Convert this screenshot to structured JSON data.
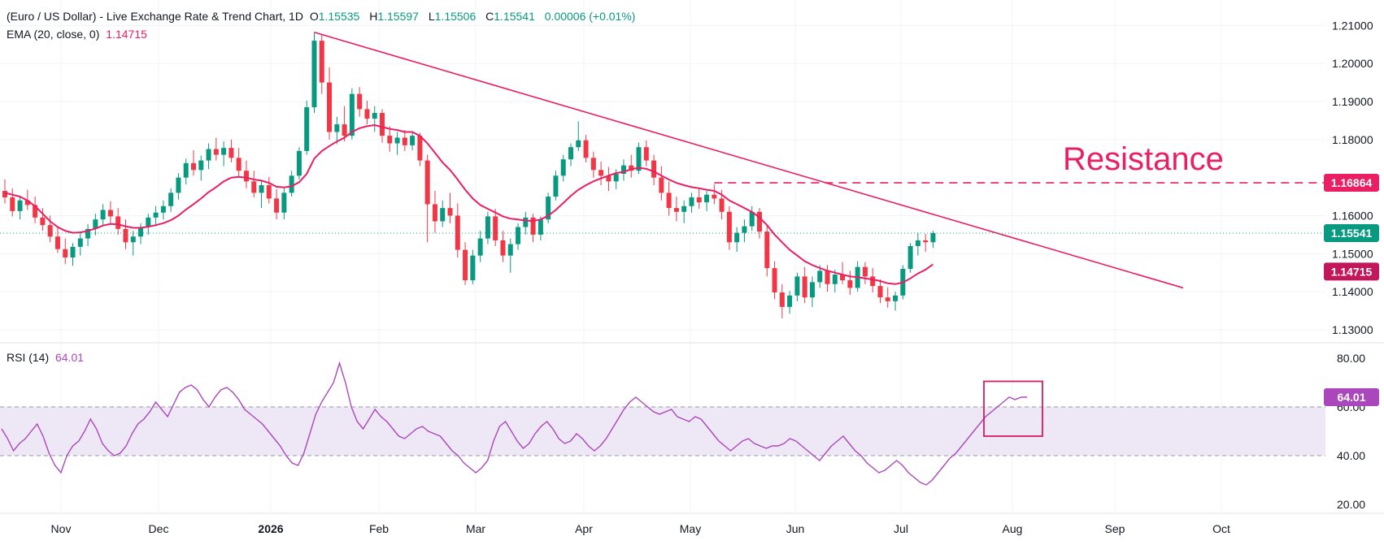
{
  "header": {
    "symbol": "(Euro / US Dollar) - Live Exchange Rate & Trend Chart, 1D",
    "o_label": "O",
    "o_value": "1.15535",
    "h_label": "H",
    "h_value": "1.15597",
    "l_label": "L",
    "l_value": "1.15506",
    "c_label": "C",
    "c_value": "1.15541",
    "change": "0.00006 (+0.01%)",
    "ema_label": "EMA (20, close, 0)",
    "ema_value": "1.14715",
    "rsi_label": "RSI (14)",
    "rsi_value": "64.01"
  },
  "colors": {
    "up": "#089981",
    "down": "#f23645",
    "ema": "#e91e63",
    "trendline": "#e91e63",
    "rsi": "#ab47bc",
    "rsi_band": "#ede7f6",
    "price_line": "#089981",
    "grid": "#f0f3fa"
  },
  "chart_data": [
    {
      "type": "candlestick",
      "title": "(Euro / US Dollar) - Live Exchange Rate & Trend Chart, 1D",
      "x_ticks": [
        "Nov",
        "Dec",
        "2026",
        "Feb",
        "Mar",
        "Apr",
        "May",
        "Jun",
        "Jul",
        "Aug",
        "Sep",
        "Oct"
      ],
      "y_ticks": [
        "1.21000",
        "1.20000",
        "1.19000",
        "1.18000",
        "1.16000",
        "1.15000",
        "1.14000",
        "1.13000"
      ],
      "ylim": [
        1.127,
        1.212
      ],
      "ohlc": [
        [
          1.1665,
          1.1695,
          1.1632,
          1.1648
        ],
        [
          1.1648,
          1.1672,
          1.1598,
          1.1612
        ],
        [
          1.1612,
          1.1652,
          1.159,
          1.164
        ],
        [
          1.164,
          1.1668,
          1.1615,
          1.1628
        ],
        [
          1.1628,
          1.165,
          1.158,
          1.1595
        ],
        [
          1.1595,
          1.162,
          1.156,
          1.1575
        ],
        [
          1.1575,
          1.16,
          1.153,
          1.1545
        ],
        [
          1.1545,
          1.1572,
          1.1502,
          1.1512
        ],
        [
          1.1512,
          1.154,
          1.1472,
          1.149
        ],
        [
          1.149,
          1.1528,
          1.1468,
          1.1518
        ],
        [
          1.1518,
          1.1555,
          1.1495,
          1.154
        ],
        [
          1.154,
          1.1578,
          1.152,
          1.1565
        ],
        [
          1.1565,
          1.1605,
          1.1548,
          1.159
        ],
        [
          1.159,
          1.163,
          1.1572,
          1.1615
        ],
        [
          1.1615,
          1.1638,
          1.158,
          1.1598
        ],
        [
          1.1598,
          1.162,
          1.155,
          1.1565
        ],
        [
          1.1565,
          1.159,
          1.1512,
          1.153
        ],
        [
          1.153,
          1.156,
          1.1495,
          1.1545
        ],
        [
          1.1545,
          1.158,
          1.1525,
          1.157
        ],
        [
          1.157,
          1.1605,
          1.155,
          1.1595
        ],
        [
          1.1595,
          1.1625,
          1.1572,
          1.1608
        ],
        [
          1.1608,
          1.164,
          1.159,
          1.1625
        ],
        [
          1.1625,
          1.1672,
          1.161,
          1.166
        ],
        [
          1.166,
          1.1712,
          1.1642,
          1.17
        ],
        [
          1.17,
          1.175,
          1.1682,
          1.1738
        ],
        [
          1.1738,
          1.1772,
          1.1705,
          1.172
        ],
        [
          1.172,
          1.1758,
          1.1692,
          1.1745
        ],
        [
          1.1745,
          1.179,
          1.1722,
          1.1775
        ],
        [
          1.1775,
          1.1805,
          1.1745,
          1.176
        ],
        [
          1.176,
          1.1795,
          1.173,
          1.1778
        ],
        [
          1.1778,
          1.18,
          1.174,
          1.1752
        ],
        [
          1.1752,
          1.1778,
          1.1702,
          1.1718
        ],
        [
          1.1718,
          1.1745,
          1.1672,
          1.169
        ],
        [
          1.169,
          1.1718,
          1.1648,
          1.166
        ],
        [
          1.166,
          1.1692,
          1.162,
          1.168
        ],
        [
          1.168,
          1.1702,
          1.1632,
          1.1645
        ],
        [
          1.1645,
          1.167,
          1.159,
          1.1608
        ],
        [
          1.1608,
          1.1672,
          1.159,
          1.166
        ],
        [
          1.166,
          1.1718,
          1.165,
          1.1705
        ],
        [
          1.1705,
          1.178,
          1.1695,
          1.177
        ],
        [
          1.177,
          1.1902,
          1.176,
          1.1885
        ],
        [
          1.1885,
          1.2082,
          1.187,
          1.206
        ],
        [
          1.206,
          1.2078,
          1.192,
          1.195
        ],
        [
          1.195,
          1.199,
          1.18,
          1.182
        ],
        [
          1.182,
          1.186,
          1.1788,
          1.184
        ],
        [
          1.184,
          1.1888,
          1.1795,
          1.181
        ],
        [
          1.181,
          1.1935,
          1.18,
          1.192
        ],
        [
          1.192,
          1.1938,
          1.186,
          1.188
        ],
        [
          1.188,
          1.1902,
          1.184,
          1.1855
        ],
        [
          1.1855,
          1.1888,
          1.182,
          1.187
        ],
        [
          1.187,
          1.188,
          1.1792,
          1.181
        ],
        [
          1.181,
          1.1835,
          1.1768,
          1.179
        ],
        [
          1.179,
          1.182,
          1.176,
          1.1805
        ],
        [
          1.1805,
          1.1825,
          1.177,
          1.1785
        ],
        [
          1.1785,
          1.1822,
          1.1772,
          1.181
        ],
        [
          1.181,
          1.1818,
          1.173,
          1.1745
        ],
        [
          1.1745,
          1.176,
          1.153,
          1.163
        ],
        [
          1.163,
          1.1665,
          1.1555,
          1.1585
        ],
        [
          1.1585,
          1.164,
          1.157,
          1.162
        ],
        [
          1.162,
          1.166,
          1.158,
          1.16
        ],
        [
          1.16,
          1.1632,
          1.149,
          1.151
        ],
        [
          1.151,
          1.153,
          1.1418,
          1.143
        ],
        [
          1.143,
          1.151,
          1.142,
          1.1495
        ],
        [
          1.1495,
          1.156,
          1.1478,
          1.154
        ],
        [
          1.154,
          1.161,
          1.1525,
          1.1598
        ],
        [
          1.1598,
          1.1618,
          1.152,
          1.1535
        ],
        [
          1.1535,
          1.156,
          1.1478,
          1.1495
        ],
        [
          1.1495,
          1.154,
          1.145,
          1.1525
        ],
        [
          1.1525,
          1.158,
          1.151,
          1.157
        ],
        [
          1.157,
          1.161,
          1.155,
          1.1595
        ],
        [
          1.1595,
          1.1605,
          1.153,
          1.155
        ],
        [
          1.155,
          1.1598,
          1.1535,
          1.159
        ],
        [
          1.159,
          1.166,
          1.158,
          1.165
        ],
        [
          1.165,
          1.1718,
          1.164,
          1.1705
        ],
        [
          1.1705,
          1.176,
          1.169,
          1.1748
        ],
        [
          1.1748,
          1.179,
          1.173,
          1.178
        ],
        [
          1.178,
          1.1848,
          1.177,
          1.1798
        ],
        [
          1.1798,
          1.1812,
          1.174,
          1.1752
        ],
        [
          1.1752,
          1.1768,
          1.17,
          1.172
        ],
        [
          1.172,
          1.1742,
          1.168,
          1.1705
        ],
        [
          1.1705,
          1.1728,
          1.1665,
          1.169
        ],
        [
          1.169,
          1.1722,
          1.167,
          1.171
        ],
        [
          1.171,
          1.1748,
          1.1692,
          1.1732
        ],
        [
          1.1732,
          1.176,
          1.17,
          1.1718
        ],
        [
          1.1718,
          1.1792,
          1.171,
          1.178
        ],
        [
          1.178,
          1.1798,
          1.173,
          1.1745
        ],
        [
          1.1745,
          1.176,
          1.168,
          1.17
        ],
        [
          1.17,
          1.173,
          1.164,
          1.166
        ],
        [
          1.166,
          1.169,
          1.16,
          1.162
        ],
        [
          1.162,
          1.165,
          1.1585,
          1.161
        ],
        [
          1.161,
          1.164,
          1.158,
          1.1625
        ],
        [
          1.1625,
          1.166,
          1.1608,
          1.1648
        ],
        [
          1.1648,
          1.167,
          1.1618,
          1.1635
        ],
        [
          1.1635,
          1.1665,
          1.1612,
          1.1655
        ],
        [
          1.1655,
          1.1682,
          1.163,
          1.1645
        ],
        [
          1.1645,
          1.1668,
          1.159,
          1.161
        ],
        [
          1.161,
          1.1625,
          1.151,
          1.153
        ],
        [
          1.153,
          1.157,
          1.1505,
          1.1555
        ],
        [
          1.1555,
          1.159,
          1.153,
          1.1572
        ],
        [
          1.1572,
          1.1625,
          1.156,
          1.161
        ],
        [
          1.161,
          1.162,
          1.154,
          1.1558
        ],
        [
          1.1558,
          1.1575,
          1.144,
          1.1462
        ],
        [
          1.1462,
          1.148,
          1.138,
          1.1398
        ],
        [
          1.1398,
          1.142,
          1.133,
          1.136
        ],
        [
          1.136,
          1.1402,
          1.1342,
          1.139
        ],
        [
          1.139,
          1.145,
          1.1375,
          1.144
        ],
        [
          1.144,
          1.1465,
          1.137,
          1.1385
        ],
        [
          1.1385,
          1.144,
          1.136,
          1.1425
        ],
        [
          1.1425,
          1.147,
          1.141,
          1.1455
        ],
        [
          1.1455,
          1.147,
          1.14,
          1.142
        ],
        [
          1.142,
          1.1458,
          1.1398,
          1.1445
        ],
        [
          1.1445,
          1.1478,
          1.142,
          1.143
        ],
        [
          1.143,
          1.1455,
          1.1392,
          1.141
        ],
        [
          1.141,
          1.148,
          1.14,
          1.1465
        ],
        [
          1.1465,
          1.1478,
          1.142,
          1.144
        ],
        [
          1.144,
          1.1462,
          1.1398,
          1.1415
        ],
        [
          1.1415,
          1.1432,
          1.137,
          1.1385
        ],
        [
          1.1385,
          1.1412,
          1.1358,
          1.1375
        ],
        [
          1.1375,
          1.14,
          1.135,
          1.139
        ],
        [
          1.139,
          1.147,
          1.138,
          1.146
        ],
        [
          1.146,
          1.1528,
          1.145,
          1.152
        ],
        [
          1.152,
          1.1555,
          1.1495,
          1.1535
        ],
        [
          1.1535,
          1.1552,
          1.1505,
          1.153
        ],
        [
          1.153,
          1.156,
          1.1515,
          1.1554
        ]
      ],
      "ema": [
        1.166,
        1.1655,
        1.165,
        1.164,
        1.1625,
        1.1605,
        1.1585,
        1.157,
        1.156,
        1.1555,
        1.1556,
        1.156,
        1.1566,
        1.1574,
        1.1578,
        1.1577,
        1.1572,
        1.1568,
        1.1568,
        1.1571,
        1.1575,
        1.158,
        1.1588,
        1.16,
        1.1616,
        1.163,
        1.1645,
        1.1662,
        1.1675,
        1.169,
        1.17,
        1.1702,
        1.17,
        1.1695,
        1.1692,
        1.1686,
        1.1676,
        1.1674,
        1.1677,
        1.1688,
        1.171,
        1.175,
        1.177,
        1.1783,
        1.1795,
        1.1805,
        1.182,
        1.183,
        1.1835,
        1.1838,
        1.1833,
        1.1828,
        1.1825,
        1.182,
        1.182,
        1.181,
        1.179,
        1.1765,
        1.174,
        1.172,
        1.1695,
        1.1668,
        1.1645,
        1.1628,
        1.1618,
        1.1608,
        1.1598,
        1.1592,
        1.159,
        1.1587,
        1.1586,
        1.159,
        1.16,
        1.1615,
        1.1633,
        1.1652,
        1.1668,
        1.168,
        1.169,
        1.1698,
        1.1705,
        1.1712,
        1.1715,
        1.1722,
        1.1726,
        1.1723,
        1.1716,
        1.1705,
        1.1695,
        1.1686,
        1.168,
        1.1675,
        1.1672,
        1.1668,
        1.1665,
        1.1655,
        1.164,
        1.163,
        1.162,
        1.161,
        1.1595,
        1.1575,
        1.155,
        1.153,
        1.151,
        1.1495,
        1.148,
        1.147,
        1.1462,
        1.1455,
        1.145,
        1.1445,
        1.144,
        1.1438,
        1.1435,
        1.1432,
        1.1428,
        1.1422,
        1.142,
        1.1424,
        1.1435,
        1.1448,
        1.1458,
        1.1472
      ],
      "trendline": {
        "start_price": 1.2082,
        "start_index": 41,
        "end_price": 1.141,
        "end_label": "Sep"
      },
      "resistance": {
        "value": 1.16864,
        "label": "Resistance"
      },
      "badges": {
        "resistance": "1.16864",
        "last": "1.15541",
        "ema": "1.14715"
      }
    },
    {
      "type": "line",
      "title": "RSI (14)",
      "y_ticks": [
        "80.00",
        "60.00",
        "40.00",
        "20.00"
      ],
      "ylim": [
        17,
        83
      ],
      "band": [
        40,
        60
      ],
      "values": [
        51,
        47,
        42,
        45,
        47,
        50,
        53,
        48,
        41,
        36,
        33,
        40,
        44,
        46,
        50,
        55,
        51,
        45,
        42,
        40,
        41,
        44,
        49,
        53,
        55,
        58,
        62,
        59,
        56,
        61,
        66,
        68,
        69,
        67,
        63,
        60,
        64,
        67,
        68,
        66,
        63,
        59,
        57,
        55,
        53,
        50,
        47,
        44,
        40,
        37,
        36,
        41,
        49,
        57,
        62,
        66,
        70,
        78,
        70,
        60,
        54,
        51,
        55,
        59,
        56,
        54,
        51,
        48,
        47,
        49,
        51,
        52,
        50,
        49,
        48,
        45,
        42,
        40,
        37,
        35,
        33,
        35,
        38,
        46,
        52,
        54,
        50,
        46,
        43,
        45,
        49,
        52,
        54,
        51,
        47,
        45,
        46,
        49,
        47,
        44,
        42,
        44,
        47,
        51,
        55,
        59,
        62,
        64,
        62,
        60,
        58,
        57,
        58,
        59,
        56,
        55,
        54,
        56,
        55,
        52,
        49,
        46,
        44,
        42,
        44,
        46,
        47,
        45,
        44,
        43,
        44,
        44,
        45,
        47,
        46,
        44,
        42,
        40,
        38,
        41,
        44,
        46,
        48,
        45,
        42,
        40,
        37,
        35,
        33,
        34,
        36,
        38,
        36,
        33,
        31,
        29,
        28,
        30,
        33,
        36,
        39,
        41,
        44,
        47,
        50,
        53,
        56,
        58,
        60,
        62,
        64,
        63,
        64,
        64.01
      ],
      "annotation": "highlight box",
      "badges": {
        "last": "64.01"
      }
    }
  ]
}
